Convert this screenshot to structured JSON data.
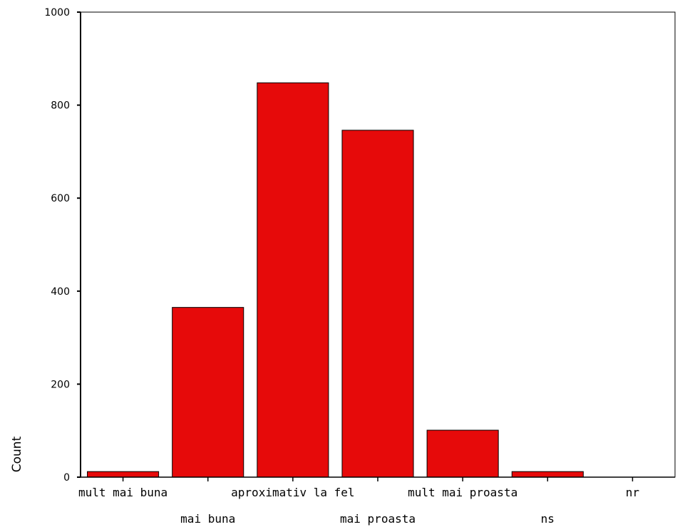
{
  "chart_data": {
    "type": "bar",
    "title": "",
    "xlabel": "",
    "ylabel": "Count",
    "ylim": [
      0,
      1000
    ],
    "yticks": [
      0,
      200,
      400,
      600,
      800,
      1000
    ],
    "grid": false,
    "bar_color": "#e60a0a",
    "categories": [
      "mult mai buna",
      "mai buna",
      "aproximativ la fel",
      "mai proasta",
      "mult mai proasta",
      "ns",
      "nr"
    ],
    "values": [
      12,
      365,
      848,
      746,
      101,
      12,
      0
    ]
  }
}
